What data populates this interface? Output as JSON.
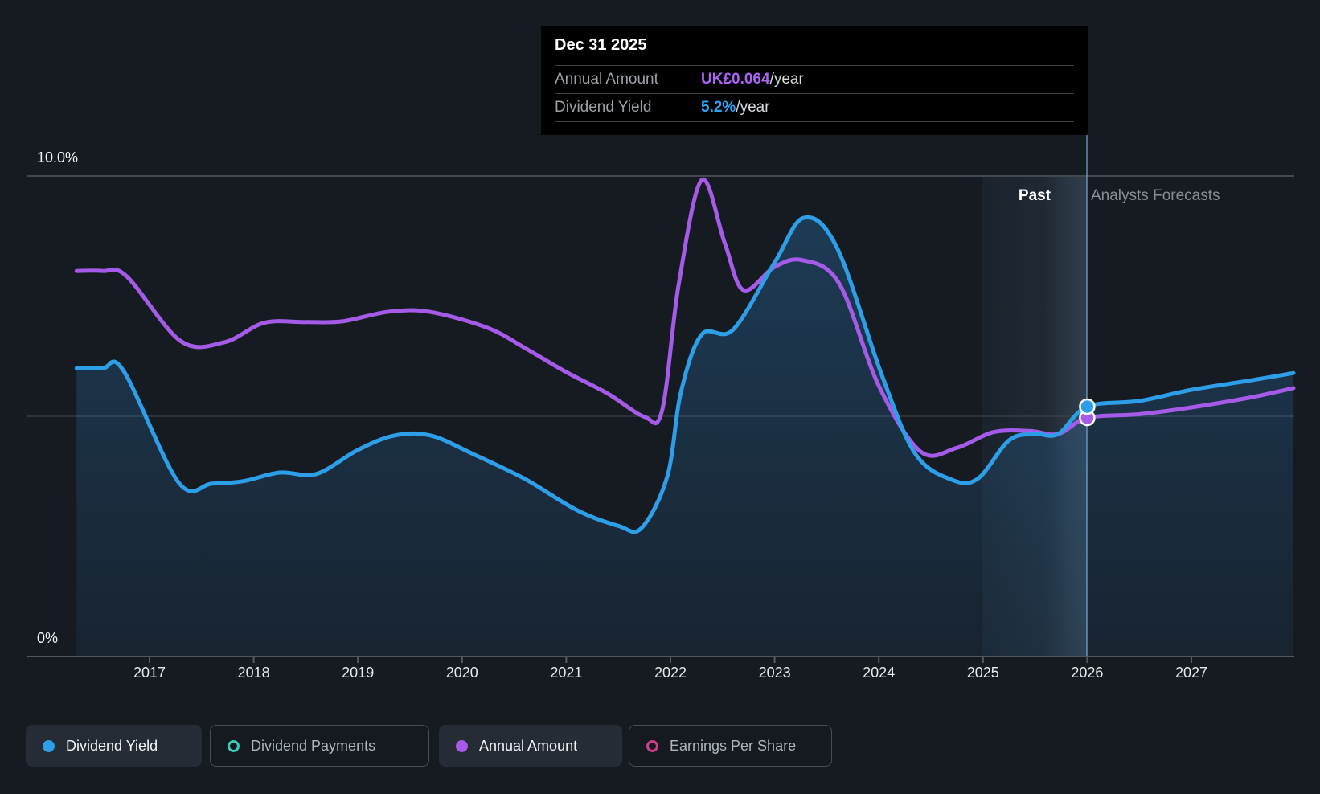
{
  "tooltip": {
    "date": "Dec 31 2025",
    "rows": [
      {
        "label": "Annual Amount",
        "value": "UK£0.064",
        "suffix": "/year",
        "value_color": "#ab63f5"
      },
      {
        "label": "Dividend Yield",
        "value": "5.2%",
        "suffix": "/year",
        "value_color": "#2ba3f7"
      }
    ]
  },
  "axis": {
    "y_max_label": "10.0%",
    "y_min_label": "0%",
    "years": [
      "2017",
      "2018",
      "2019",
      "2020",
      "2021",
      "2022",
      "2023",
      "2024",
      "2025",
      "2026",
      "2027"
    ]
  },
  "regions": {
    "past_label": "Past",
    "forecast_label": "Analysts Forecasts"
  },
  "legend": {
    "items": [
      {
        "label": "Dividend Yield",
        "color": "#2d9fe8",
        "style": "filled",
        "active": true
      },
      {
        "label": "Dividend Payments",
        "color": "#3ec9b6",
        "style": "outline",
        "active": false
      },
      {
        "label": "Annual Amount",
        "color": "#a55ae8",
        "style": "filled",
        "active": true
      },
      {
        "label": "Earnings Per Share",
        "color": "#ce3f87",
        "style": "outline",
        "active": false
      }
    ]
  },
  "chart_data": {
    "type": "area",
    "x_range": [
      2016.3,
      2028.0
    ],
    "y_left": {
      "unit": "%",
      "min": 0,
      "max": 10,
      "gridlines_pct": [
        0,
        5,
        10
      ]
    },
    "past_highlight_years": [
      2025,
      2026
    ],
    "forecast_divider_x": 2026.0,
    "legend_position": "bottom",
    "series": [
      {
        "name": "Dividend Yield",
        "unit": "%",
        "color": "#2d9fe8",
        "area": true,
        "points": [
          [
            2016.3,
            6.0
          ],
          [
            2016.55,
            6.0
          ],
          [
            2016.75,
            5.95
          ],
          [
            2017.28,
            3.62
          ],
          [
            2017.6,
            3.6
          ],
          [
            2017.9,
            3.65
          ],
          [
            2018.25,
            3.83
          ],
          [
            2018.6,
            3.8
          ],
          [
            2019.0,
            4.3
          ],
          [
            2019.35,
            4.6
          ],
          [
            2019.7,
            4.6
          ],
          [
            2020.1,
            4.22
          ],
          [
            2020.6,
            3.7
          ],
          [
            2021.1,
            3.05
          ],
          [
            2021.5,
            2.72
          ],
          [
            2021.72,
            2.67
          ],
          [
            2021.97,
            3.75
          ],
          [
            2022.1,
            5.5
          ],
          [
            2022.3,
            6.7
          ],
          [
            2022.6,
            6.8
          ],
          [
            2023.0,
            8.2
          ],
          [
            2023.28,
            9.13
          ],
          [
            2023.6,
            8.5
          ],
          [
            2024.03,
            5.85
          ],
          [
            2024.35,
            4.22
          ],
          [
            2024.7,
            3.68
          ],
          [
            2024.95,
            3.7
          ],
          [
            2025.25,
            4.5
          ],
          [
            2025.5,
            4.63
          ],
          [
            2025.72,
            4.63
          ],
          [
            2026.0,
            5.2
          ],
          [
            2026.5,
            5.32
          ],
          [
            2027.0,
            5.55
          ],
          [
            2027.55,
            5.74
          ],
          [
            2027.98,
            5.9
          ]
        ]
      },
      {
        "name": "Annual Amount",
        "unit": "GBP",
        "color": "#a55ae8",
        "area": false,
        "points": [
          [
            2016.3,
            0.1034
          ],
          [
            2016.55,
            0.1034
          ],
          [
            2016.78,
            0.102
          ],
          [
            2017.3,
            0.0846
          ],
          [
            2017.72,
            0.0843
          ],
          [
            2018.1,
            0.0895
          ],
          [
            2018.5,
            0.0897
          ],
          [
            2018.85,
            0.0899
          ],
          [
            2019.3,
            0.0925
          ],
          [
            2019.7,
            0.0924
          ],
          [
            2020.25,
            0.0881
          ],
          [
            2020.6,
            0.0828
          ],
          [
            2021.0,
            0.0763
          ],
          [
            2021.4,
            0.0705
          ],
          [
            2021.75,
            0.0643
          ],
          [
            2021.92,
            0.066
          ],
          [
            2022.08,
            0.1
          ],
          [
            2022.3,
            0.1278
          ],
          [
            2022.52,
            0.111
          ],
          [
            2022.7,
            0.0983
          ],
          [
            2023.0,
            0.1045
          ],
          [
            2023.27,
            0.1063
          ],
          [
            2023.62,
            0.1
          ],
          [
            2024.0,
            0.0726
          ],
          [
            2024.4,
            0.055
          ],
          [
            2024.75,
            0.056
          ],
          [
            2025.1,
            0.0602
          ],
          [
            2025.45,
            0.0605
          ],
          [
            2025.72,
            0.0597
          ],
          [
            2026.0,
            0.064
          ],
          [
            2026.5,
            0.065
          ],
          [
            2027.0,
            0.0668
          ],
          [
            2027.55,
            0.0694
          ],
          [
            2027.98,
            0.072
          ]
        ]
      }
    ],
    "markers": [
      {
        "series": "Dividend Yield",
        "x": 2026.0,
        "value": 5.2
      },
      {
        "series": "Annual Amount",
        "x": 2026.0,
        "value": 0.064
      }
    ]
  }
}
